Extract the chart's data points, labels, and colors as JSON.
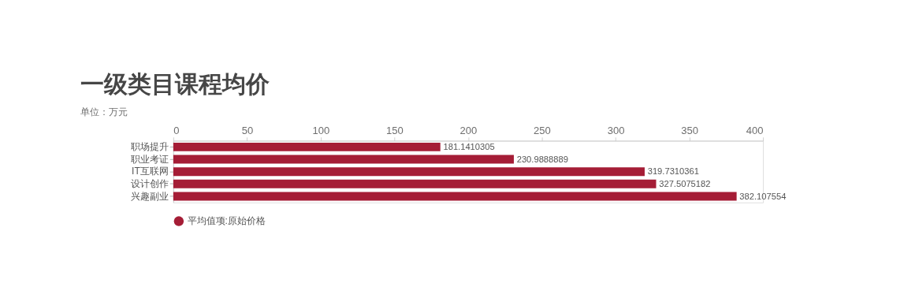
{
  "chart_data": {
    "type": "bar",
    "orientation": "horizontal",
    "title": "一级类目课程均价",
    "subtitle": "单位：万元",
    "categories": [
      "职场提升",
      "职业考证",
      "IT互联网",
      "设计创作",
      "兴趣副业"
    ],
    "series": [
      {
        "name": "平均值项:原始价格",
        "color": "#a51d36",
        "values": [
          181.1410305,
          230.9888889,
          319.7310361,
          327.5075182,
          382.107554
        ]
      }
    ],
    "xlim": [
      0,
      400
    ],
    "xticks": [
      0,
      50,
      100,
      150,
      200,
      250,
      300,
      350,
      400
    ],
    "data_labels": true,
    "grid": false,
    "legend": "bottom"
  }
}
